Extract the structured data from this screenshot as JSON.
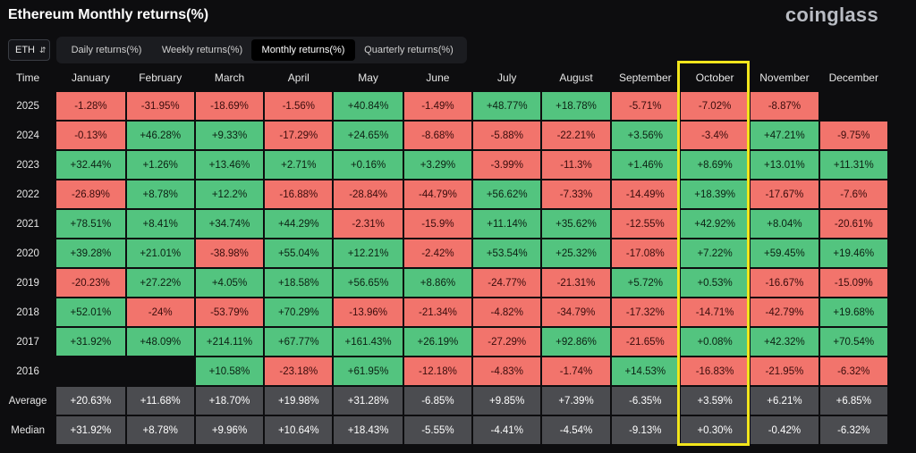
{
  "title": "Ethereum Monthly returns(%)",
  "brand": "coinglass",
  "asset_select": {
    "value": "ETH",
    "icon": "chevron-updown-icon"
  },
  "tabs": [
    {
      "label": "Daily returns(%)",
      "active": false
    },
    {
      "label": "Weekly returns(%)",
      "active": false
    },
    {
      "label": "Monthly returns(%)",
      "active": true
    },
    {
      "label": "Quarterly returns(%)",
      "active": false
    }
  ],
  "table": {
    "corner": "Time",
    "months": [
      "January",
      "February",
      "March",
      "April",
      "May",
      "June",
      "July",
      "August",
      "September",
      "October",
      "November",
      "December"
    ],
    "rows": [
      {
        "label": "2025",
        "cells": [
          "-1.28%",
          "-31.95%",
          "-18.69%",
          "-1.56%",
          "+40.84%",
          "-1.49%",
          "+48.77%",
          "+18.78%",
          "-5.71%",
          "-7.02%",
          "-8.87%",
          ""
        ]
      },
      {
        "label": "2024",
        "cells": [
          "-0.13%",
          "+46.28%",
          "+9.33%",
          "-17.29%",
          "+24.65%",
          "-8.68%",
          "-5.88%",
          "-22.21%",
          "+3.56%",
          "-3.4%",
          "+47.21%",
          "-9.75%"
        ]
      },
      {
        "label": "2023",
        "cells": [
          "+32.44%",
          "+1.26%",
          "+13.46%",
          "+2.71%",
          "+0.16%",
          "+3.29%",
          "-3.99%",
          "-11.3%",
          "+1.46%",
          "+8.69%",
          "+13.01%",
          "+11.31%"
        ]
      },
      {
        "label": "2022",
        "cells": [
          "-26.89%",
          "+8.78%",
          "+12.2%",
          "-16.88%",
          "-28.84%",
          "-44.79%",
          "+56.62%",
          "-7.33%",
          "-14.49%",
          "+18.39%",
          "-17.67%",
          "-7.6%"
        ]
      },
      {
        "label": "2021",
        "cells": [
          "+78.51%",
          "+8.41%",
          "+34.74%",
          "+44.29%",
          "-2.31%",
          "-15.9%",
          "+11.14%",
          "+35.62%",
          "-12.55%",
          "+42.92%",
          "+8.04%",
          "-20.61%"
        ]
      },
      {
        "label": "2020",
        "cells": [
          "+39.28%",
          "+21.01%",
          "-38.98%",
          "+55.04%",
          "+12.21%",
          "-2.42%",
          "+53.54%",
          "+25.32%",
          "-17.08%",
          "+7.22%",
          "+59.45%",
          "+19.46%"
        ]
      },
      {
        "label": "2019",
        "cells": [
          "-20.23%",
          "+27.22%",
          "+4.05%",
          "+18.58%",
          "+56.65%",
          "+8.86%",
          "-24.77%",
          "-21.31%",
          "+5.72%",
          "+0.53%",
          "-16.67%",
          "-15.09%"
        ]
      },
      {
        "label": "2018",
        "cells": [
          "+52.01%",
          "-24%",
          "-53.79%",
          "+70.29%",
          "-13.96%",
          "-21.34%",
          "-4.82%",
          "-34.79%",
          "-17.32%",
          "-14.71%",
          "-42.79%",
          "+19.68%"
        ]
      },
      {
        "label": "2017",
        "cells": [
          "+31.92%",
          "+48.09%",
          "+214.11%",
          "+67.77%",
          "+161.43%",
          "+26.19%",
          "-27.29%",
          "+92.86%",
          "-21.65%",
          "+0.08%",
          "+42.32%",
          "+70.54%"
        ]
      },
      {
        "label": "2016",
        "cells": [
          "",
          "",
          "+10.58%",
          "-23.18%",
          "+61.95%",
          "-12.18%",
          "-4.83%",
          "-1.74%",
          "+14.53%",
          "-16.83%",
          "-21.95%",
          "-6.32%"
        ]
      }
    ],
    "stats": [
      {
        "label": "Average",
        "cells": [
          "+20.63%",
          "+11.68%",
          "+18.70%",
          "+19.98%",
          "+31.28%",
          "-6.85%",
          "+9.85%",
          "+7.39%",
          "-6.35%",
          "+3.59%",
          "+6.21%",
          "+6.85%"
        ]
      },
      {
        "label": "Median",
        "cells": [
          "+31.92%",
          "+8.78%",
          "+9.96%",
          "+10.64%",
          "+18.43%",
          "-5.55%",
          "-4.41%",
          "-4.54%",
          "-9.13%",
          "+0.30%",
          "-0.42%",
          "-6.32%"
        ]
      }
    ]
  },
  "highlighted_month": "October",
  "colors": {
    "positive": "#53c47f",
    "negative": "#f2746c",
    "stat": "#4b4c50",
    "highlight": "#f2e51c",
    "background": "#0d0d0f"
  }
}
